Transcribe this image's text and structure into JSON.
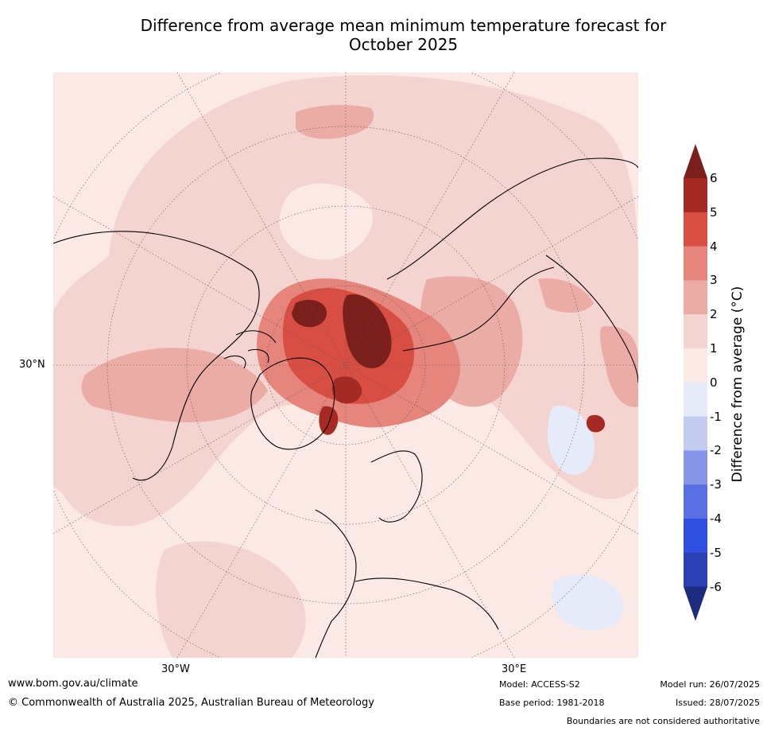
{
  "title_line1": "Difference from average mean minimum temperature forecast for",
  "title_line2": "October 2025",
  "map": {
    "grid_labels": {
      "lat": "30°N",
      "lon_west": "30°W",
      "lon_east": "30°E"
    }
  },
  "colorbar": {
    "label": "Difference from average (°C)",
    "ticks": [
      "6",
      "5",
      "4",
      "3",
      "2",
      "1",
      "0",
      "-1",
      "-2",
      "-3",
      "-4",
      "-5",
      "-6"
    ],
    "bins": [
      {
        "range": "5 to 6",
        "color": "#a52a24"
      },
      {
        "range": "4 to 5",
        "color": "#d94e42"
      },
      {
        "range": "3 to 4",
        "color": "#e6857c"
      },
      {
        "range": "2 to 3",
        "color": "#ebaca6"
      },
      {
        "range": "1 to 2",
        "color": "#f4d4d0"
      },
      {
        "range": "0 to 1",
        "color": "#fbe9e6"
      },
      {
        "range": "-1 to 0",
        "color": "#e6ebfa"
      },
      {
        "range": "-2 to -1",
        "color": "#c3cbf0"
      },
      {
        "range": "-3 to -2",
        "color": "#8795e8"
      },
      {
        "range": "-4 to -3",
        "color": "#5a6fe3"
      },
      {
        "range": "-5 to -4",
        "color": "#2f4fe0"
      },
      {
        "range": "-6 to -5",
        "color": "#2a40b3"
      }
    ],
    "over_color": "#7a1f1c",
    "under_color": "#1e2c80"
  },
  "footer": {
    "url": "www.bom.gov.au/climate",
    "copyright": "© Commonwealth of Australia 2025, Australian Bureau of Meteorology",
    "model": "Model: ACCESS-S2",
    "base_period": "Base period: 1981-2018",
    "model_run": "Model run: 26/07/2025",
    "issued": "Issued: 28/07/2025",
    "boundaries_note": "Boundaries are not considered authoritative"
  }
}
